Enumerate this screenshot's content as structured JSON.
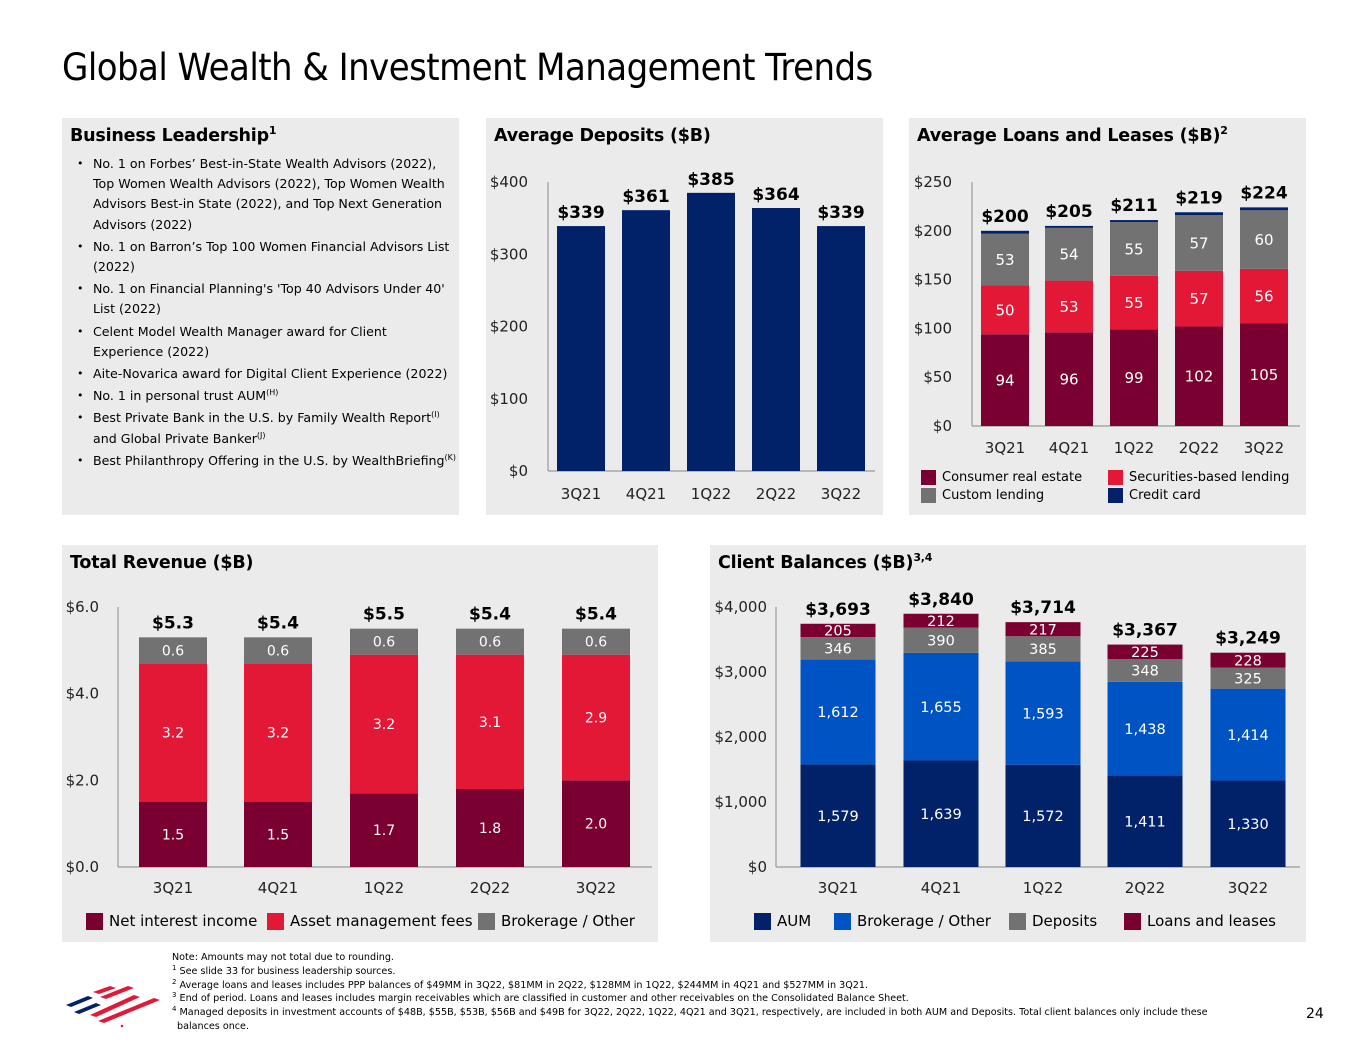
{
  "page": {
    "title": "Global Wealth & Investment Management Trends",
    "page_number": "24"
  },
  "business_leadership": {
    "title": "Business Leadership",
    "title_sup": "1",
    "items": [
      {
        "text": "No. 1 on Forbes’ Best-in-State Wealth Advisors (2022), Top Women Wealth Advisors (2022), Top Women Wealth Advisors Best-in State (2022), and Top Next Generation Advisors (2022)",
        "sup": ""
      },
      {
        "text": "No. 1 on Barron’s Top 100 Women Financial Advisors List (2022)",
        "sup": ""
      },
      {
        "text": "No. 1 on Financial Planning's 'Top 40 Advisors Under 40' List (2022)",
        "sup": ""
      },
      {
        "text": "Celent Model Wealth Manager award for Client Experience (2022)",
        "sup": ""
      },
      {
        "text": "Aite-Novarica award for Digital Client Experience (2022)",
        "sup": ""
      },
      {
        "text": "No. 1 in personal trust AUM",
        "sup": "(H)"
      },
      {
        "text": "Best Private Bank in the U.S. by Family Wealth Report",
        "sup": "(I)",
        "text2": " and Global Private Banker",
        "sup2": "(J)"
      },
      {
        "text": "Best Philanthropy Offering in the U.S. by WealthBriefing",
        "sup": "(K)"
      }
    ]
  },
  "colors": {
    "panel_bg": "#ebebeb",
    "navy": "#012169",
    "maroon": "#7a0032",
    "red": "#e31837",
    "gray": "#727272",
    "blue": "#0053c2"
  },
  "chart_data": [
    {
      "id": "avg_deposits",
      "type": "bar",
      "title": "Average Deposits ($B)",
      "title_sup": "",
      "categories": [
        "3Q21",
        "4Q21",
        "1Q22",
        "2Q22",
        "3Q22"
      ],
      "values": [
        339,
        361,
        385,
        364,
        339
      ],
      "value_labels": [
        "$339",
        "$361",
        "$385",
        "$364",
        "$339"
      ],
      "series_color": "#012169",
      "ylim": [
        0,
        400
      ],
      "yticks": [
        0,
        100,
        200,
        300,
        400
      ],
      "ytick_labels": [
        "$0",
        "$100",
        "$200",
        "$300",
        "$400"
      ],
      "xlabel": "",
      "ylabel": "",
      "grid": false
    },
    {
      "id": "avg_loans",
      "type": "bar",
      "stacked": true,
      "title": "Average Loans and Leases ($B)",
      "title_sup": "2",
      "categories": [
        "3Q21",
        "4Q21",
        "1Q22",
        "2Q22",
        "3Q22"
      ],
      "series": [
        {
          "name": "Consumer real estate",
          "color": "#7a0032",
          "values": [
            94,
            96,
            99,
            102,
            105
          ],
          "show_labels": true
        },
        {
          "name": "Securities-based lending",
          "color": "#e31837",
          "values": [
            50,
            53,
            55,
            57,
            56
          ],
          "show_labels": true
        },
        {
          "name": "Custom lending",
          "color": "#727272",
          "values": [
            53,
            54,
            55,
            57,
            60
          ],
          "show_labels": true
        },
        {
          "name": "Credit card",
          "color": "#012169",
          "values": [
            3,
            2,
            2,
            3,
            3
          ],
          "show_labels": false
        }
      ],
      "totals": [
        "$200",
        "$205",
        "$211",
        "$219",
        "$224"
      ],
      "legend_order": [
        "Consumer real estate",
        "Securities-based lending",
        "Custom lending",
        "Credit card"
      ],
      "legend_placement": "bottom",
      "ylim": [
        0,
        250
      ],
      "yticks": [
        0,
        50,
        100,
        150,
        200,
        250
      ],
      "ytick_labels": [
        "$0",
        "$50",
        "$100",
        "$150",
        "$200",
        "$250"
      ],
      "xlabel": "",
      "ylabel": "",
      "grid": false
    },
    {
      "id": "total_revenue",
      "type": "bar",
      "stacked": true,
      "title": "Total Revenue ($B)",
      "title_sup": "",
      "categories": [
        "3Q21",
        "4Q21",
        "1Q22",
        "2Q22",
        "3Q22"
      ],
      "series": [
        {
          "name": "Net interest income",
          "color": "#7a0032",
          "values": [
            1.5,
            1.5,
            1.7,
            1.8,
            2.0
          ],
          "labels": [
            "1.5",
            "1.5",
            "1.7",
            "1.8",
            "2.0"
          ]
        },
        {
          "name": "Asset management fees",
          "color": "#e31837",
          "values": [
            3.2,
            3.2,
            3.2,
            3.1,
            2.9
          ],
          "labels": [
            "3.2",
            "3.2",
            "3.2",
            "3.1",
            "2.9"
          ]
        },
        {
          "name": "Brokerage / Other",
          "color": "#727272",
          "values": [
            0.6,
            0.6,
            0.6,
            0.6,
            0.6
          ],
          "labels": [
            "0.6",
            "0.6",
            "0.6",
            "0.6",
            "0.6"
          ]
        }
      ],
      "totals": [
        "$5.3",
        "$5.4",
        "$5.5",
        "$5.4",
        "$5.4"
      ],
      "total_values": [
        5.3,
        5.4,
        5.5,
        5.4,
        5.4
      ],
      "legend_placement": "bottom",
      "ylim": [
        0,
        6
      ],
      "yticks": [
        0,
        2,
        4,
        6
      ],
      "ytick_labels": [
        "$0.0",
        "$2.0",
        "$4.0",
        "$6.0"
      ],
      "xlabel": "",
      "ylabel": "",
      "grid": false
    },
    {
      "id": "client_balances",
      "type": "bar",
      "stacked": true,
      "title": "Client Balances ($B)",
      "title_sup": "3,4",
      "categories": [
        "3Q21",
        "4Q21",
        "1Q22",
        "2Q22",
        "3Q22"
      ],
      "series": [
        {
          "name": "AUM",
          "color": "#012169",
          "values": [
            1579,
            1639,
            1572,
            1411,
            1330
          ],
          "labels": [
            "1,579",
            "1,639",
            "1,572",
            "1,411",
            "1,330"
          ]
        },
        {
          "name": "Brokerage / Other",
          "color": "#0053c2",
          "values": [
            1612,
            1655,
            1593,
            1438,
            1414
          ],
          "labels": [
            "1,612",
            "1,655",
            "1,593",
            "1,438",
            "1,414"
          ]
        },
        {
          "name": "Deposits",
          "color": "#727272",
          "values": [
            346,
            390,
            385,
            348,
            325
          ],
          "labels": [
            "346",
            "390",
            "385",
            "348",
            "325"
          ]
        },
        {
          "name": "Loans and leases",
          "color": "#7a0032",
          "values": [
            205,
            212,
            217,
            225,
            228
          ],
          "labels": [
            "205",
            "212",
            "217",
            "225",
            "228"
          ]
        }
      ],
      "totals": [
        "$3,693",
        "$3,840",
        "$3,714",
        "$3,367",
        "$3,249"
      ],
      "legend_placement": "bottom",
      "ylim": [
        0,
        4000
      ],
      "yticks": [
        0,
        1000,
        2000,
        3000,
        4000
      ],
      "ytick_labels": [
        "$0",
        "$1,000",
        "$2,000",
        "$3,000",
        "$4,000"
      ],
      "xlabel": "",
      "ylabel": "",
      "grid": false
    }
  ],
  "footnotes": {
    "note": "Note: Amounts may not total due to rounding.",
    "items": [
      {
        "sup": "1",
        "text": "See slide 33 for business leadership sources."
      },
      {
        "sup": "2",
        "text": "Average loans and leases includes PPP balances of $49MM in 3Q22, $81MM in 2Q22, $128MM in 1Q22, $244MM in 4Q21 and $527MM in 3Q21."
      },
      {
        "sup": "3",
        "text": "End of period. Loans and leases includes margin receivables which are classified in customer and other receivables on the Consolidated Balance Sheet."
      },
      {
        "sup": "4",
        "text": "Managed deposits in investment accounts of $48B, $55B, $53B, $56B and $49B for 3Q22, 2Q22, 1Q22, 4Q21 and 3Q21, respectively, are included in both AUM and Deposits. Total client balances only include these",
        "text_cont": "balances once."
      }
    ]
  },
  "logo": {
    "name": "bank-flag-logo",
    "colors": [
      "#012169",
      "#e31837"
    ]
  }
}
